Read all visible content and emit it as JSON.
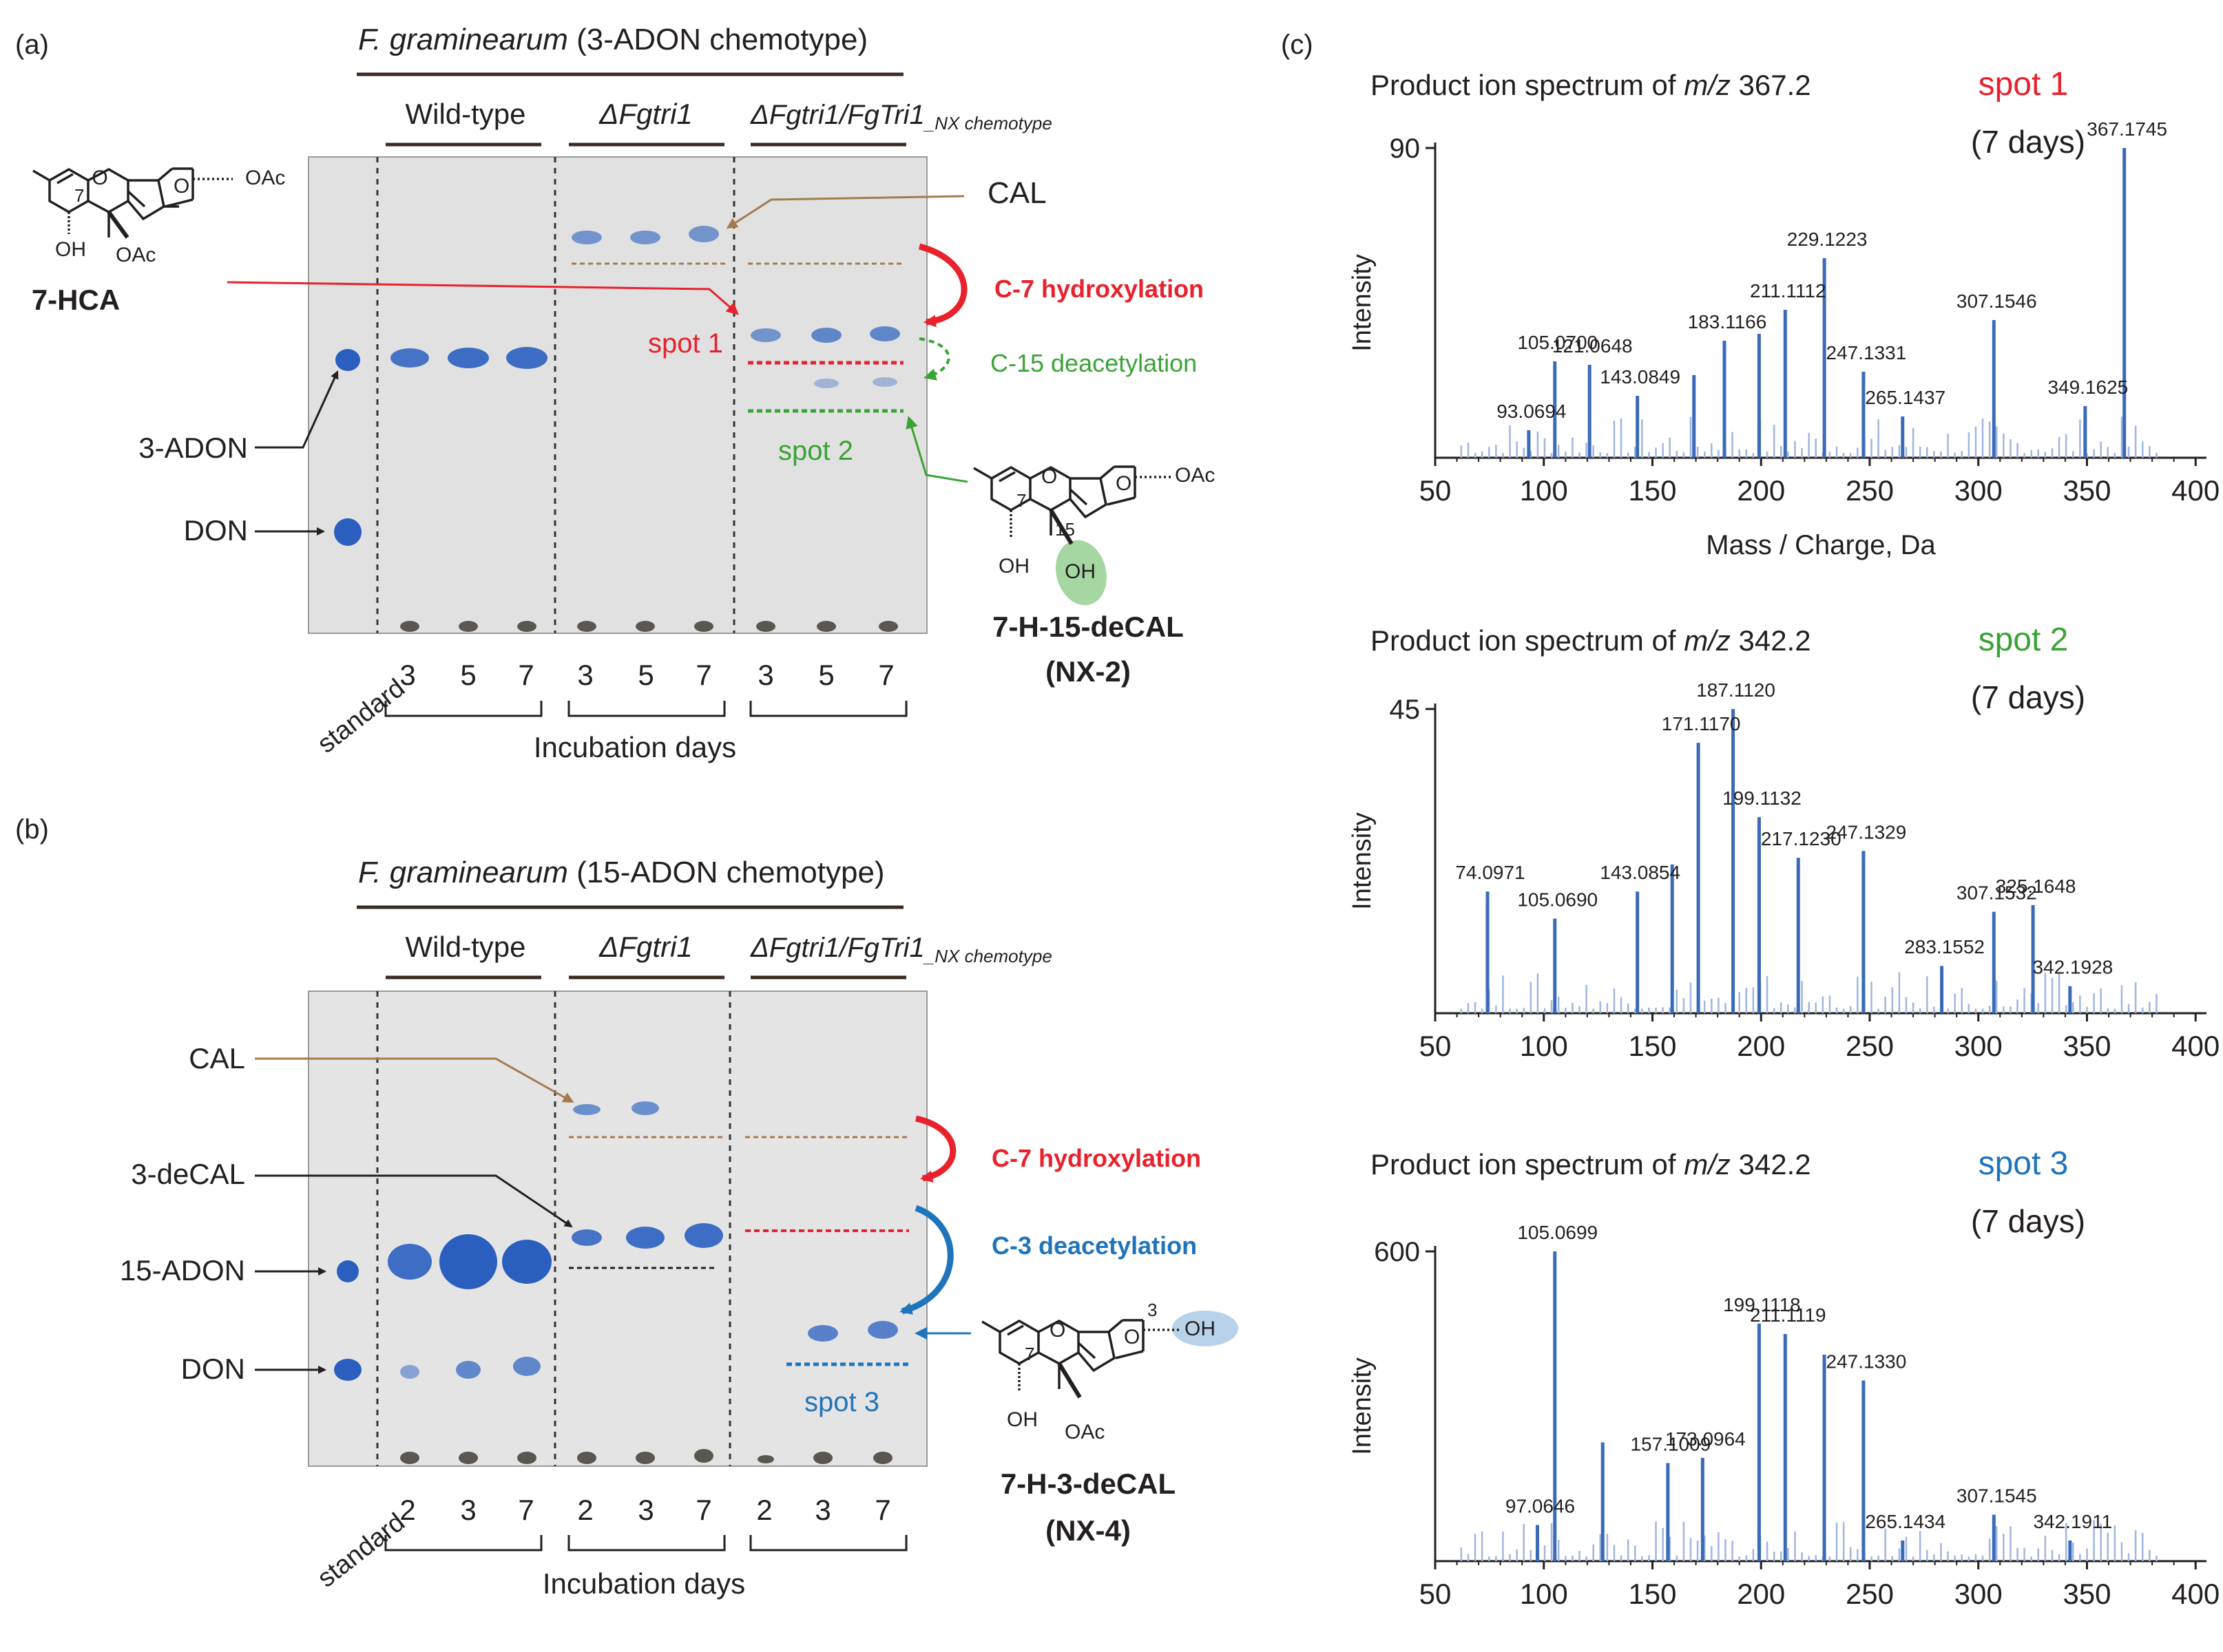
{
  "panel_a": {
    "label": "(a)",
    "title_species": "F. graminearum",
    "title_chemotype": " (3-ADON chemotype)",
    "group_wt": "Wild-type",
    "group_ko": "ΔFgtri1",
    "group_comp": "ΔFgtri1/FgTri1",
    "group_comp_sub": "_NX chemotype",
    "lanes": [
      "3",
      "5",
      "7",
      "3",
      "5",
      "7",
      "3",
      "5",
      "7"
    ],
    "standard": "standard",
    "xlabel": "Incubation days",
    "cal": "CAL",
    "c7": "C-7 hydroxylation",
    "spot1": "spot 1",
    "c15": "C-15 deacetylation",
    "spot2": "spot 2",
    "adon": "3-ADON",
    "don": "DON",
    "hca_name": "7-HCA",
    "hca_oac1": "OAc",
    "hca_oac2": "OAc",
    "hca_oh": "OH",
    "hca_o": "O",
    "hca_o2": "O",
    "hca_7": "7",
    "nx2_name": "7-H-15-deCAL",
    "nx2_code": "(NX-2)",
    "nx2_oac": "OAc",
    "nx2_oh1": "OH",
    "nx2_oh2": "OH",
    "nx2_o": "O",
    "nx2_o2": "O",
    "nx2_7": "7",
    "nx2_15": "15"
  },
  "panel_b": {
    "label": "(b)",
    "title_species": "F. graminearum",
    "title_chemotype": " (15-ADON chemotype)",
    "group_wt": "Wild-type",
    "group_ko": "ΔFgtri1",
    "group_comp": "ΔFgtri1/FgTri1",
    "group_comp_sub": "_NX chemotype",
    "lanes": [
      "2",
      "3",
      "7",
      "2",
      "3",
      "7",
      "2",
      "3",
      "7"
    ],
    "standard": "standard",
    "xlabel": "Incubation days",
    "cal": "CAL",
    "decal": "3-deCAL",
    "adon": "15-ADON",
    "don": "DON",
    "c7": "C-7 hydroxylation",
    "c3": "C-3 deacetylation",
    "spot3": "spot 3",
    "nx4_name": "7-H-3-deCAL",
    "nx4_code": "(NX-4)",
    "nx4_oh": "OH",
    "nx4_oh2": "OH",
    "nx4_oac": "OAc",
    "nx4_o": "O",
    "nx4_o2": "O",
    "nx4_7": "7",
    "nx4_3": "3"
  },
  "panel_c": {
    "label": "(c)",
    "spectra": [
      {
        "title_pre": "Product ion spectrum of ",
        "mz_label": "m/z",
        "mz_value": " 367.2",
        "spot": "spot 1",
        "spot_color": "#e8212d",
        "days": "(7 days)",
        "ylabel": "Intensity",
        "ymax_label": "90",
        "xlabel": "Mass / Charge, Da",
        "xticks": [
          "50",
          "100",
          "150",
          "200",
          "250",
          "300",
          "350",
          "400"
        ]
      },
      {
        "title_pre": "Product ion spectrum of ",
        "mz_label": "m/z",
        "mz_value": " 342.2",
        "spot": "spot 2",
        "spot_color": "#3aa335",
        "days": "(7 days)",
        "ylabel": "Intensity",
        "ymax_label": "45",
        "xlabel": "",
        "xticks": [
          "50",
          "100",
          "150",
          "200",
          "250",
          "300",
          "350",
          "400"
        ]
      },
      {
        "title_pre": "Product ion spectrum of ",
        "mz_label": "m/z",
        "mz_value": " 342.2",
        "spot": "spot 3",
        "spot_color": "#1f74bb",
        "days": "(7 days)",
        "ylabel": "Intensity",
        "ymax_label": "600",
        "xlabel": "",
        "xticks": [
          "50",
          "100",
          "150",
          "200",
          "250",
          "300",
          "350",
          "400"
        ]
      }
    ]
  },
  "colors": {
    "red": "#e8212d",
    "green": "#3aa335",
    "blue": "#1f74bb",
    "brown": "#a47a4c",
    "spot": "#2a5fc0"
  },
  "chart_data": [
    {
      "type": "bar",
      "title": "Product ion spectrum of m/z 367.2",
      "xlabel": "Mass / Charge, Da",
      "ylabel": "Intensity",
      "xlim": [
        50,
        405
      ],
      "ylim": [
        0,
        90
      ],
      "peaks": [
        [
          93.0694,
          8
        ],
        [
          105.07,
          28
        ],
        [
          121.0648,
          27
        ],
        [
          143.0849,
          18
        ],
        [
          169.1,
          24
        ],
        [
          183.1166,
          34
        ],
        [
          199.1,
          36
        ],
        [
          211.1112,
          43
        ],
        [
          229.1223,
          58
        ],
        [
          247.1331,
          25
        ],
        [
          265.1437,
          12
        ],
        [
          307.1546,
          40
        ],
        [
          349.1625,
          15
        ],
        [
          367.1745,
          90
        ]
      ],
      "labels": [
        {
          "mz": 93.0694,
          "text": "93.0694"
        },
        {
          "mz": 105.07,
          "text": "105.0700"
        },
        {
          "mz": 121.0648,
          "text": "121.0648"
        },
        {
          "mz": 143.0849,
          "text": "143.0849"
        },
        {
          "mz": 183.1166,
          "text": "183.1166"
        },
        {
          "mz": 211.1112,
          "text": "211.1112"
        },
        {
          "mz": 229.1223,
          "text": "229.1223"
        },
        {
          "mz": 247.1331,
          "text": "247.1331"
        },
        {
          "mz": 265.1437,
          "text": "265.1437"
        },
        {
          "mz": 307.1546,
          "text": "307.1546"
        },
        {
          "mz": 349.1625,
          "text": "349.1625"
        },
        {
          "mz": 367.1745,
          "text": "367.1745"
        }
      ]
    },
    {
      "type": "bar",
      "title": "Product ion spectrum of m/z 342.2",
      "xlabel": "",
      "ylabel": "Intensity",
      "xlim": [
        50,
        405
      ],
      "ylim": [
        0,
        45
      ],
      "peaks": [
        [
          74.0971,
          18
        ],
        [
          105.069,
          14
        ],
        [
          143.0854,
          18
        ],
        [
          159.1,
          22
        ],
        [
          171.117,
          40
        ],
        [
          187.112,
          45
        ],
        [
          199.1132,
          29
        ],
        [
          217.123,
          23
        ],
        [
          247.1329,
          24
        ],
        [
          283.1552,
          7
        ],
        [
          307.1532,
          15
        ],
        [
          325.1648,
          16
        ],
        [
          342.1928,
          4
        ]
      ],
      "labels": [
        {
          "mz": 74.0971,
          "text": "74.0971"
        },
        {
          "mz": 105.069,
          "text": "105.0690"
        },
        {
          "mz": 143.0854,
          "text": "143.0854"
        },
        {
          "mz": 171.117,
          "text": "171.1170"
        },
        {
          "mz": 187.112,
          "text": "187.1120"
        },
        {
          "mz": 199.1132,
          "text": "199.1132"
        },
        {
          "mz": 217.123,
          "text": "217.1230"
        },
        {
          "mz": 247.1329,
          "text": "247.1329"
        },
        {
          "mz": 283.1552,
          "text": "283.1552"
        },
        {
          "mz": 307.1532,
          "text": "307.1532"
        },
        {
          "mz": 325.1648,
          "text": "325.1648"
        },
        {
          "mz": 342.1928,
          "text": "342.1928"
        }
      ]
    },
    {
      "type": "bar",
      "title": "Product ion spectrum of m/z 342.2",
      "xlabel": "",
      "ylabel": "Intensity",
      "xlim": [
        50,
        405
      ],
      "ylim": [
        0,
        600
      ],
      "peaks": [
        [
          97.0646,
          70
        ],
        [
          105.0699,
          600
        ],
        [
          127.1,
          230
        ],
        [
          157.1009,
          190
        ],
        [
          173.0964,
          200
        ],
        [
          199.1118,
          460
        ],
        [
          211.1119,
          440
        ],
        [
          229.1,
          400
        ],
        [
          247.133,
          350
        ],
        [
          265.1434,
          40
        ],
        [
          307.1545,
          90
        ],
        [
          342.1911,
          40
        ]
      ],
      "labels": [
        {
          "mz": 97.0646,
          "text": "97.0646"
        },
        {
          "mz": 105.0699,
          "text": "105.0699"
        },
        {
          "mz": 157.1009,
          "text": "157.1009"
        },
        {
          "mz": 173.0964,
          "text": "173.0964"
        },
        {
          "mz": 199.1118,
          "text": "199.1118"
        },
        {
          "mz": 211.1119,
          "text": "211.1119"
        },
        {
          "mz": 247.133,
          "text": "247.1330"
        },
        {
          "mz": 265.1434,
          "text": "265.1434"
        },
        {
          "mz": 307.1545,
          "text": "307.1545"
        },
        {
          "mz": 342.1911,
          "text": "342.1911"
        }
      ]
    }
  ]
}
